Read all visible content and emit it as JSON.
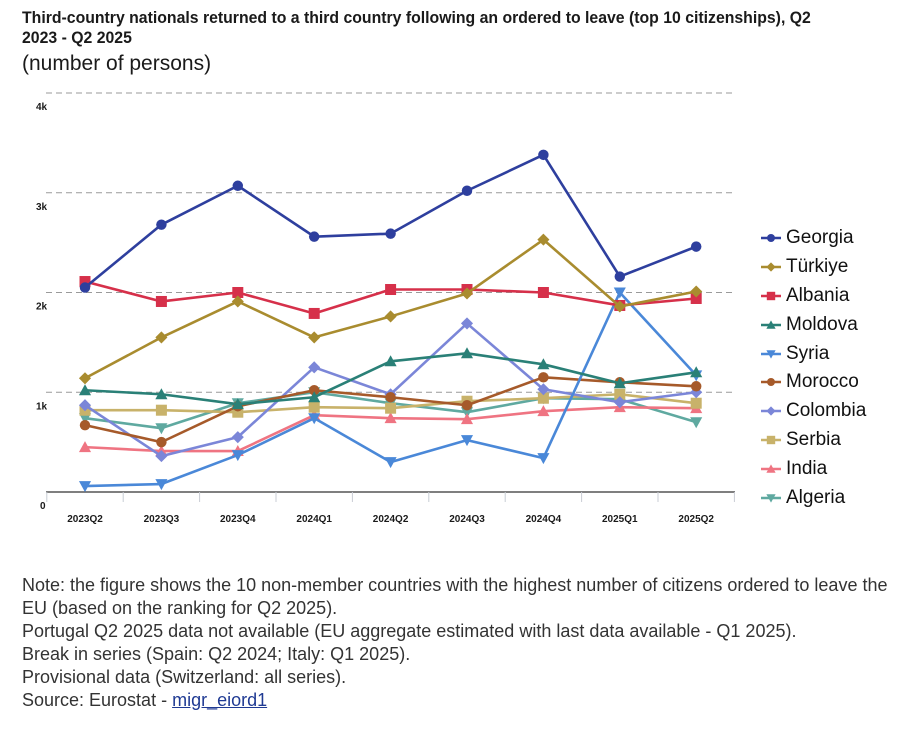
{
  "title": "Third-country nationals returned to a third country following an ordered to leave (top 10 citizenships), Q2 2023 - Q2 2025",
  "subtitle": "(number of persons)",
  "chart_data": {
    "type": "line",
    "title": "Third-country nationals returned to a third country following an ordered to leave (top 10 citizenships), Q2 2023 - Q2 2025",
    "subtitle": "(number of persons)",
    "xlabel": "",
    "ylabel": "",
    "categories": [
      "2023Q2",
      "2023Q3",
      "2023Q4",
      "2024Q1",
      "2024Q2",
      "2024Q3",
      "2024Q4",
      "2025Q1",
      "2025Q2"
    ],
    "ylim": [
      0,
      4000
    ],
    "yticks": [
      0,
      1000,
      2000,
      3000,
      4000
    ],
    "ytick_labels": [
      "0",
      "1k",
      "2k",
      "3k",
      "4k"
    ],
    "grid": "horizontal-dashed",
    "legend_position": "right",
    "series": [
      {
        "name": "Georgia",
        "color": "#2e3f9e",
        "marker": "circle",
        "values": [
          2050,
          2680,
          3070,
          2560,
          2590,
          3020,
          3380,
          2160,
          2460
        ]
      },
      {
        "name": "Türkiye",
        "color": "#a98c2f",
        "marker": "diamond",
        "values": [
          1140,
          1550,
          1910,
          1550,
          1760,
          1990,
          2530,
          1860,
          2010
        ]
      },
      {
        "name": "Albania",
        "color": "#d6304a",
        "marker": "square",
        "values": [
          2110,
          1910,
          2000,
          1790,
          2030,
          2030,
          2000,
          1870,
          1940
        ]
      },
      {
        "name": "Moldova",
        "color": "#2a8077",
        "marker": "triangle-up",
        "values": [
          1020,
          980,
          880,
          950,
          1310,
          1390,
          1280,
          1090,
          1200
        ]
      },
      {
        "name": "Syria",
        "color": "#4a88d8",
        "marker": "triangle-down",
        "values": [
          60,
          80,
          370,
          740,
          300,
          520,
          340,
          2000,
          1170
        ]
      },
      {
        "name": "Morocco",
        "color": "#a65a2a",
        "marker": "circle",
        "values": [
          670,
          500,
          860,
          1020,
          950,
          870,
          1150,
          1100,
          1060
        ]
      },
      {
        "name": "Colombia",
        "color": "#7b86d8",
        "marker": "diamond",
        "values": [
          870,
          360,
          550,
          1250,
          980,
          1690,
          1030,
          900,
          1000
        ]
      },
      {
        "name": "Serbia",
        "color": "#c8b26a",
        "marker": "square",
        "values": [
          820,
          820,
          800,
          850,
          840,
          910,
          940,
          980,
          890
        ]
      },
      {
        "name": "India",
        "color": "#ef7482",
        "marker": "triangle-up",
        "values": [
          450,
          410,
          410,
          770,
          740,
          730,
          810,
          850,
          840
        ]
      },
      {
        "name": "Algeria",
        "color": "#5fa9a0",
        "marker": "triangle-down",
        "values": [
          740,
          640,
          890,
          1000,
          890,
          800,
          940,
          930,
          700
        ]
      }
    ]
  },
  "notes": {
    "line1": "Note: the figure shows the 10 non-member countries with the highest number of citizens ordered to leave the EU (based on the ranking for Q2 2025).",
    "line2": "Portugal Q2 2025 data not available (EU aggregate estimated with last data available - Q1 2025).",
    "line3": "Break in series (Spain: Q2 2024; Italy: Q1 2025).",
    "line4": "Provisional data (Switzerland: all series).",
    "source_prefix": "Source: Eurostat - ",
    "source_link": "migr_eiord1"
  }
}
